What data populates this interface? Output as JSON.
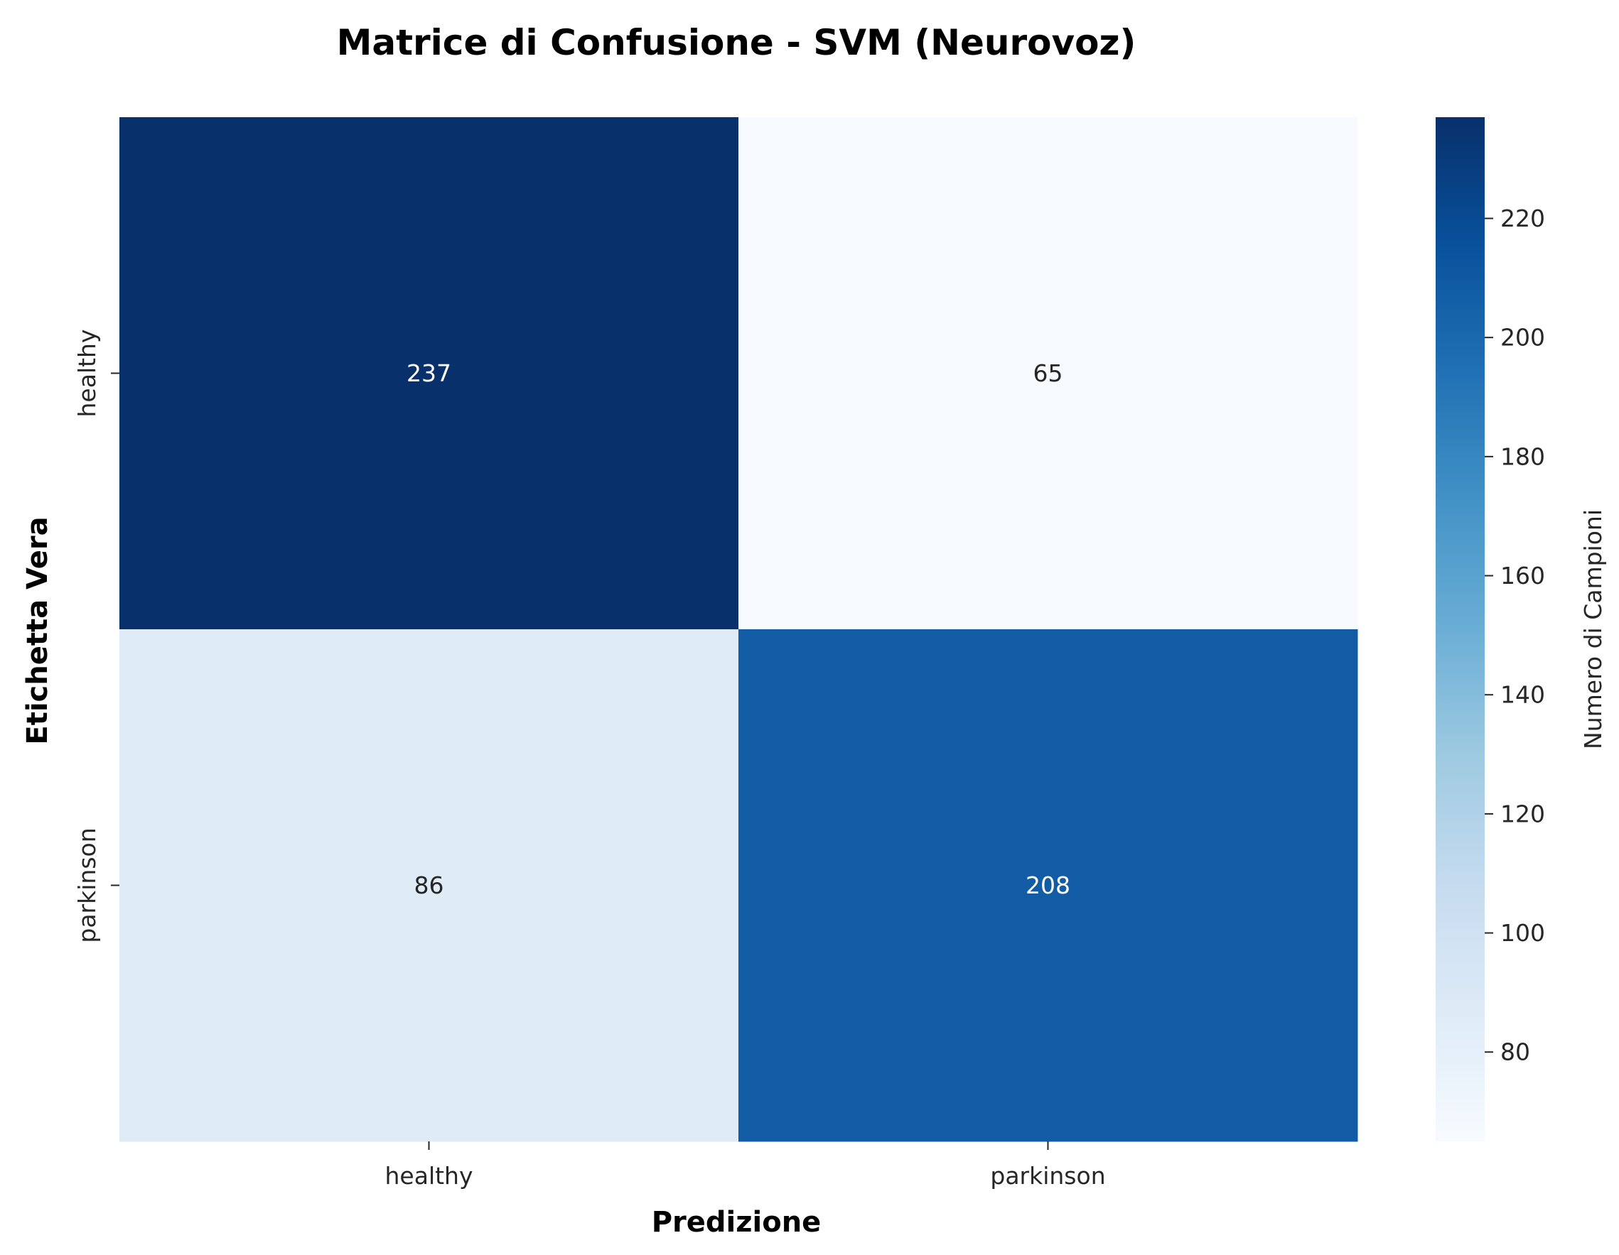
{
  "chart_data": {
    "type": "heatmap",
    "title": "Matrice di Confusione - SVM (Neurovoz)",
    "xlabel": "Predizione",
    "ylabel": "Etichetta Vera",
    "x_categories": [
      "healthy",
      "parkinson"
    ],
    "y_categories": [
      "healthy",
      "parkinson"
    ],
    "values": [
      [
        237,
        65
      ],
      [
        86,
        208
      ]
    ],
    "colormap": "Blues",
    "colorbar": {
      "label": "Numero di Campioni",
      "min": 65,
      "max": 237,
      "ticks": [
        80,
        100,
        120,
        140,
        160,
        180,
        200,
        220
      ]
    },
    "colors": {
      "light_text": "#ffffff",
      "dark_text": "#262626"
    }
  }
}
